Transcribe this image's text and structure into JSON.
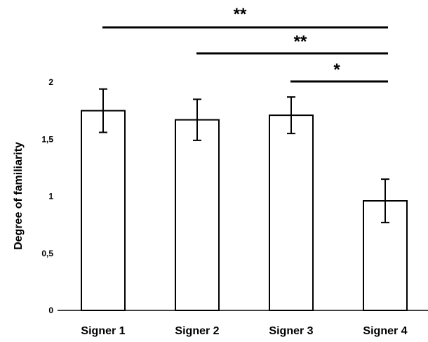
{
  "chart_data": {
    "type": "bar",
    "ylabel": "Degree of familiarity",
    "ylim": [
      0,
      2
    ],
    "yticks": [
      0,
      0.5,
      1,
      1.5,
      2
    ],
    "ytick_labels": [
      "0",
      "0,5",
      "1",
      "1,5",
      "2"
    ],
    "categories": [
      "Signer 1",
      "Signer 2",
      "Signer 3",
      "Signer 4"
    ],
    "values": [
      1.75,
      1.67,
      1.71,
      0.96
    ],
    "error": [
      0.19,
      0.18,
      0.16,
      0.19
    ],
    "grid": false,
    "bar_color": "#ffffff",
    "edge_color": "#000000",
    "significance": [
      {
        "from": "Signer 1",
        "to": "Signer 4",
        "label": "**"
      },
      {
        "from": "Signer 2",
        "to": "Signer 4",
        "label": "**"
      },
      {
        "from": "Signer 3",
        "to": "Signer 4",
        "label": "*"
      }
    ]
  }
}
